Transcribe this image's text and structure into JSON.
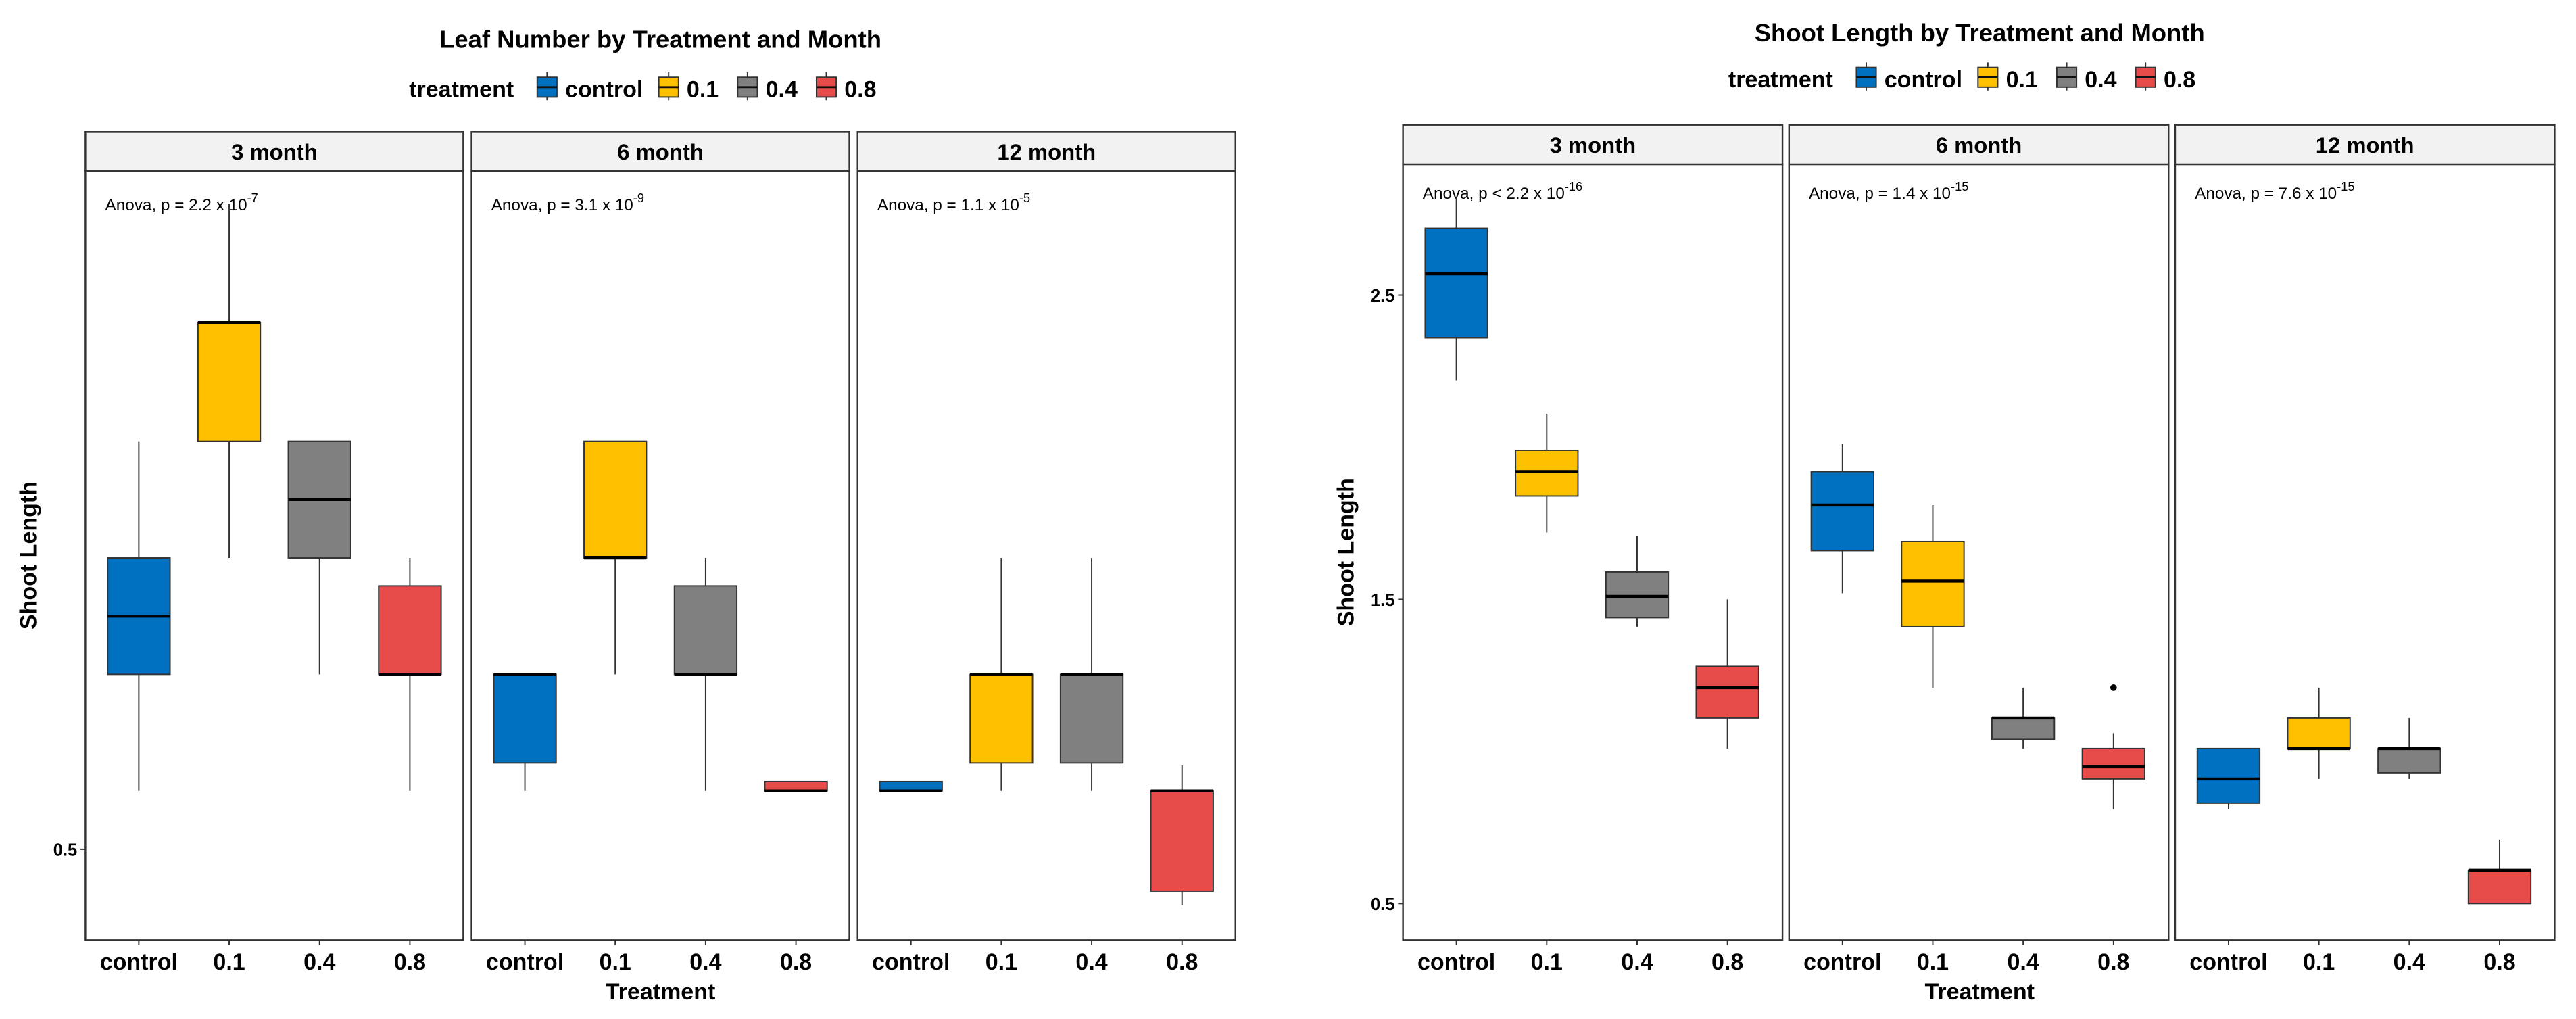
{
  "chart_data": [
    {
      "type": "boxplot",
      "title": "Leaf Number by Treatment and Month",
      "legend_title": "treatment",
      "legend_position": "top",
      "xlabel": "Treatment",
      "ylabel": "Shoot Length",
      "yticks": [
        0.5
      ],
      "ylim": [
        0.11,
        3.41
      ],
      "categories": [
        "control",
        "0.1",
        "0.4",
        "0.8"
      ],
      "colors": {
        "control": "#0070C0",
        "0.1": "#FFC000",
        "0.4": "#808080",
        "0.8": "#E84C4A"
      },
      "panels": [
        {
          "label": "3 month",
          "anova": "Anova, p = 2.2 x 10",
          "exp": "-7",
          "boxes": [
            {
              "cat": "control",
              "min": 0.75,
              "q1": 1.25,
              "median": 1.5,
              "q3": 1.75,
              "max": 2.25
            },
            {
              "cat": "0.1",
              "min": 1.75,
              "q1": 2.25,
              "median": 2.76,
              "q3": 2.76,
              "max": 3.27
            },
            {
              "cat": "0.4",
              "min": 1.25,
              "q1": 1.75,
              "median": 2.0,
              "q3": 2.25,
              "max": 2.25
            },
            {
              "cat": "0.8",
              "min": 0.75,
              "q1": 1.25,
              "median": 1.25,
              "q3": 1.63,
              "max": 1.75
            }
          ]
        },
        {
          "label": "6 month",
          "anova": "Anova, p = 3.1 x 10",
          "exp": "-9",
          "boxes": [
            {
              "cat": "control",
              "min": 0.75,
              "q1": 0.87,
              "median": 1.25,
              "q3": 1.25,
              "max": 1.25
            },
            {
              "cat": "0.1",
              "min": 1.25,
              "q1": 1.75,
              "median": 1.75,
              "q3": 2.25,
              "max": 2.25
            },
            {
              "cat": "0.4",
              "min": 0.75,
              "q1": 1.25,
              "median": 1.25,
              "q3": 1.63,
              "max": 1.75
            },
            {
              "cat": "0.8",
              "min": 0.75,
              "q1": 0.75,
              "median": 0.75,
              "q3": 0.79,
              "max": 0.79
            }
          ]
        },
        {
          "label": "12 month",
          "anova": "Anova, p = 1.1 x 10",
          "exp": "-5",
          "boxes": [
            {
              "cat": "control",
              "min": 0.75,
              "q1": 0.75,
              "median": 0.75,
              "q3": 0.79,
              "max": 0.79
            },
            {
              "cat": "0.1",
              "min": 0.75,
              "q1": 0.87,
              "median": 1.25,
              "q3": 1.25,
              "max": 1.75
            },
            {
              "cat": "0.4",
              "min": 0.75,
              "q1": 0.87,
              "median": 1.25,
              "q3": 1.25,
              "max": 1.75
            },
            {
              "cat": "0.8",
              "min": 0.26,
              "q1": 0.32,
              "median": 0.75,
              "q3": 0.75,
              "max": 0.86
            }
          ]
        }
      ]
    },
    {
      "type": "boxplot",
      "title": "Shoot Length by Treatment and Month",
      "legend_title": "treatment",
      "legend_position": "top",
      "xlabel": "Treatment",
      "ylabel": "Shoot Length",
      "yticks": [
        0.5,
        1.5,
        2.5
      ],
      "ylim": [
        0.38,
        2.93
      ],
      "categories": [
        "control",
        "0.1",
        "0.4",
        "0.8"
      ],
      "colors": {
        "control": "#0070C0",
        "0.1": "#FFC000",
        "0.4": "#808080",
        "0.8": "#E84C4A"
      },
      "panels": [
        {
          "label": "3 month",
          "anova": "Anova, p < 2.2 x 10",
          "exp": "-16",
          "boxes": [
            {
              "cat": "control",
              "min": 2.22,
              "q1": 2.36,
              "median": 2.57,
              "q3": 2.72,
              "max": 2.82
            },
            {
              "cat": "0.1",
              "min": 1.72,
              "q1": 1.84,
              "median": 1.92,
              "q3": 1.99,
              "max": 2.11
            },
            {
              "cat": "0.4",
              "min": 1.41,
              "q1": 1.44,
              "median": 1.51,
              "q3": 1.59,
              "max": 1.71
            },
            {
              "cat": "0.8",
              "min": 1.01,
              "q1": 1.11,
              "median": 1.21,
              "q3": 1.28,
              "max": 1.5
            }
          ]
        },
        {
          "label": "6 month",
          "anova": "Anova, p = 1.4 x 10",
          "exp": "-15",
          "boxes": [
            {
              "cat": "control",
              "min": 1.52,
              "q1": 1.66,
              "median": 1.81,
              "q3": 1.92,
              "max": 2.01
            },
            {
              "cat": "0.1",
              "min": 1.21,
              "q1": 1.41,
              "median": 1.56,
              "q3": 1.69,
              "max": 1.81
            },
            {
              "cat": "0.4",
              "min": 1.01,
              "q1": 1.04,
              "median": 1.11,
              "q3": 1.11,
              "max": 1.21
            },
            {
              "cat": "0.8",
              "min": 0.81,
              "q1": 0.91,
              "median": 0.95,
              "q3": 1.01,
              "max": 1.06,
              "outliers": [
                1.21
              ]
            }
          ]
        },
        {
          "label": "12 month",
          "anova": "Anova, p = 7.6 x 10",
          "exp": "-15",
          "boxes": [
            {
              "cat": "control",
              "min": 0.81,
              "q1": 0.83,
              "median": 0.91,
              "q3": 1.01,
              "max": 1.01
            },
            {
              "cat": "0.1",
              "min": 0.91,
              "q1": 1.01,
              "median": 1.01,
              "q3": 1.11,
              "max": 1.21
            },
            {
              "cat": "0.4",
              "min": 0.91,
              "q1": 0.93,
              "median": 1.01,
              "q3": 1.01,
              "max": 1.11
            },
            {
              "cat": "0.8",
              "min": 0.5,
              "q1": 0.5,
              "median": 0.61,
              "q3": 0.61,
              "max": 0.71
            }
          ]
        }
      ]
    }
  ]
}
